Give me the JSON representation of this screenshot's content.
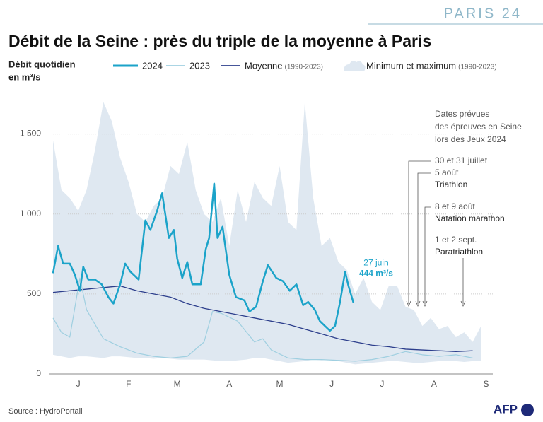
{
  "chart_data": {
    "type": "line",
    "brand": "PARIS 24",
    "title": "Débit de la Seine : près du triple de la moyenne à Paris",
    "y_label": [
      "Débit quotidien",
      "en m³/s"
    ],
    "source": "Source : HydroPortail",
    "agency": "AFP",
    "xlim": [
      0,
      262
    ],
    "ylim": [
      0,
      1750
    ],
    "yticks": [
      0,
      500,
      {
        "value": 1000,
        "label": "1 000"
      },
      {
        "value": 1500,
        "label": "1 500"
      }
    ],
    "xticks": [
      {
        "value": 15,
        "label": "J"
      },
      {
        "value": 45,
        "label": "F"
      },
      {
        "value": 74,
        "label": "M"
      },
      {
        "value": 105,
        "label": "A"
      },
      {
        "value": 135,
        "label": "M"
      },
      {
        "value": 166,
        "label": "J"
      },
      {
        "value": 196,
        "label": "J"
      },
      {
        "value": 227,
        "label": "A"
      },
      {
        "value": 258,
        "label": "S"
      }
    ],
    "grid": true,
    "band": {
      "name": "Minimum et maximum",
      "period": "(1990-2023)",
      "color": "#dfe8f1",
      "x": [
        0,
        5,
        10,
        15,
        20,
        25,
        30,
        35,
        40,
        45,
        50,
        55,
        60,
        65,
        70,
        75,
        80,
        85,
        90,
        95,
        100,
        105,
        110,
        115,
        120,
        125,
        130,
        135,
        140,
        145,
        150,
        155,
        160,
        165,
        170,
        175,
        180,
        185,
        190,
        195,
        200,
        205,
        210,
        215,
        220,
        225,
        230,
        235,
        240,
        245,
        250,
        255
      ],
      "max": [
        1460,
        1150,
        1100,
        1020,
        1150,
        1400,
        1700,
        1580,
        1350,
        1200,
        1000,
        950,
        1050,
        1100,
        1300,
        1250,
        1450,
        1150,
        1000,
        950,
        1100,
        800,
        1150,
        950,
        1200,
        1100,
        1050,
        1300,
        950,
        900,
        1700,
        1100,
        800,
        850,
        700,
        650,
        500,
        600,
        450,
        400,
        550,
        550,
        420,
        400,
        300,
        350,
        280,
        300,
        230,
        260,
        200,
        300
      ],
      "min": [
        120,
        110,
        100,
        110,
        110,
        105,
        100,
        110,
        110,
        105,
        100,
        100,
        95,
        100,
        95,
        90,
        90,
        90,
        90,
        85,
        80,
        80,
        85,
        90,
        100,
        100,
        90,
        80,
        70,
        75,
        80,
        90,
        85,
        90,
        80,
        70,
        60,
        65,
        70,
        75,
        80,
        80,
        75,
        70,
        70,
        75,
        80,
        80,
        80,
        75,
        80,
        80
      ]
    },
    "series": [
      {
        "name": "2024",
        "color": "#1ba3c9",
        "width": 2.5,
        "x": [
          0,
          3,
          6,
          10,
          13,
          16,
          18,
          21,
          25,
          29,
          33,
          36,
          40,
          43,
          46,
          51,
          55,
          58,
          62,
          65,
          69,
          72,
          74,
          77,
          80,
          83,
          88,
          91,
          93,
          96,
          98,
          101,
          105,
          109,
          114,
          117,
          121,
          125,
          128,
          133,
          137,
          141,
          145,
          149,
          152,
          156,
          159,
          162,
          165,
          168,
          171,
          174,
          176,
          179
        ],
        "values": [
          630,
          800,
          690,
          690,
          620,
          520,
          670,
          590,
          590,
          560,
          480,
          440,
          560,
          690,
          640,
          590,
          960,
          900,
          1020,
          1130,
          850,
          900,
          720,
          600,
          700,
          560,
          560,
          780,
          850,
          1190,
          850,
          920,
          620,
          480,
          460,
          390,
          420,
          580,
          680,
          600,
          580,
          520,
          560,
          430,
          450,
          400,
          330,
          300,
          270,
          300,
          450,
          640,
          550,
          444
        ]
      },
      {
        "name": "2023",
        "color": "#9fcfe0",
        "width": 1.2,
        "x": [
          0,
          5,
          10,
          16,
          20,
          30,
          40,
          50,
          60,
          70,
          80,
          90,
          95,
          100,
          110,
          120,
          125,
          130,
          140,
          150,
          160,
          170,
          180,
          190,
          200,
          210,
          220,
          230,
          240,
          250
        ],
        "values": [
          350,
          260,
          230,
          600,
          400,
          220,
          170,
          130,
          110,
          100,
          110,
          200,
          390,
          380,
          330,
          200,
          220,
          150,
          100,
          90,
          90,
          85,
          80,
          90,
          110,
          140,
          120,
          110,
          120,
          100
        ]
      },
      {
        "name": "Moyenne",
        "period": "(1990-2023)",
        "color": "#2c3e8c",
        "width": 1.3,
        "x": [
          0,
          10,
          20,
          30,
          40,
          50,
          60,
          70,
          80,
          90,
          100,
          110,
          120,
          130,
          140,
          150,
          160,
          170,
          180,
          190,
          200,
          210,
          220,
          230,
          240,
          250
        ],
        "values": [
          510,
          520,
          530,
          540,
          550,
          520,
          500,
          480,
          440,
          410,
          390,
          370,
          350,
          330,
          310,
          280,
          250,
          220,
          200,
          180,
          170,
          155,
          150,
          145,
          140,
          145
        ]
      }
    ],
    "annotation": {
      "date": "27 juin",
      "value_label": "444 m³/s"
    },
    "events_title": [
      "Dates prévues",
      "des épreuves en Seine",
      "lors des Jeux 2024"
    ],
    "events": [
      {
        "lines": [
          "30 et 31 juillet"
        ]
      },
      {
        "lines": [
          "5 août",
          "Triathlon"
        ]
      },
      {
        "lines": [
          "8 et 9 août",
          "Natation marathon"
        ]
      },
      {
        "lines": [
          "1 et 2 sept.",
          "Paratriathlon"
        ]
      }
    ]
  }
}
